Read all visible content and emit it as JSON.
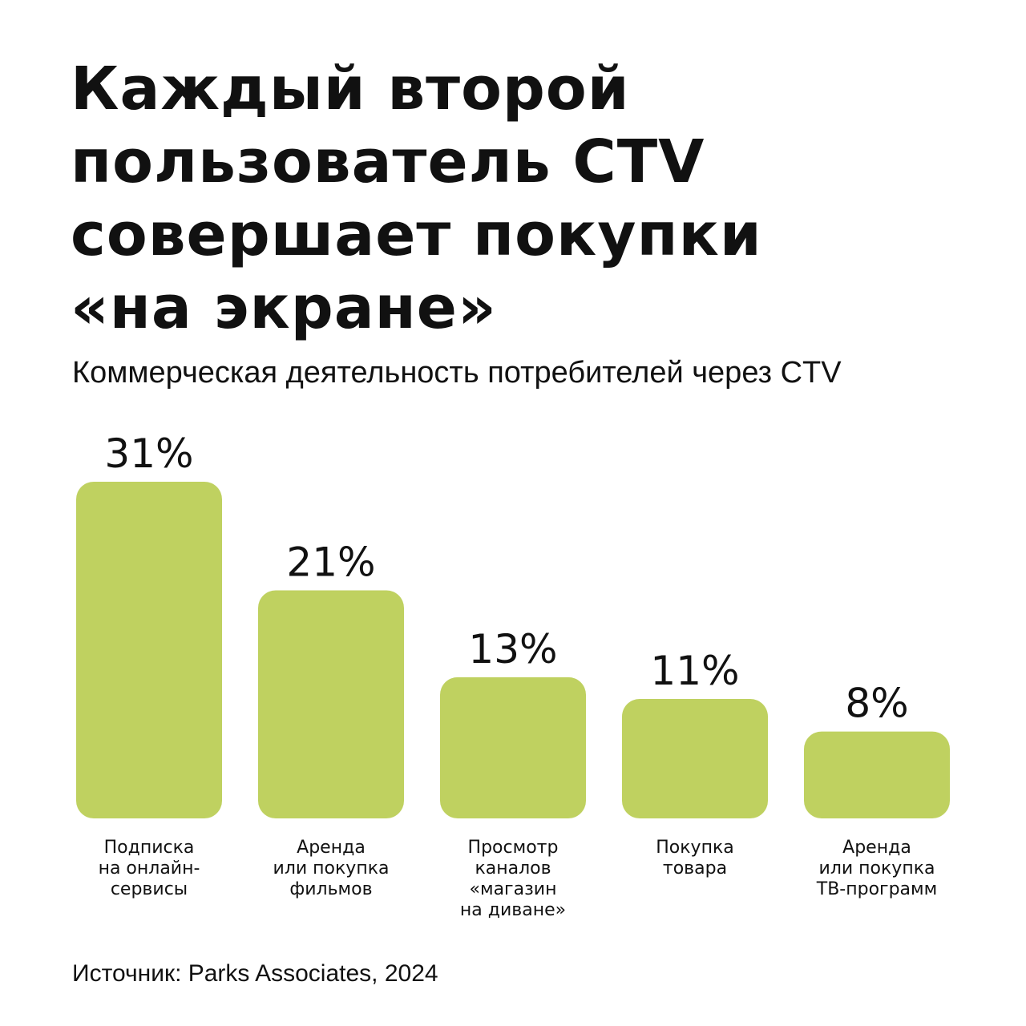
{
  "header": {
    "title_lines": [
      "Каждый второй",
      "пользователь CTV",
      "совершает покупки",
      "«на экране»"
    ],
    "subtitle": "Коммерческая деятельность потребителей через CTV"
  },
  "chart_data": {
    "type": "bar",
    "title": "Каждый второй пользователь CTV совершает покупки «на экране»",
    "subtitle": "Коммерческая деятельность потребителей через CTV",
    "categories": [
      "Подписка на онлайн-сервисы",
      "Аренда или покупка фильмов",
      "Просмотр каналов «магазин на диване»",
      "Покупка товара",
      "Аренда или покупка ТВ-программ"
    ],
    "category_label_lines": [
      [
        "Подписка",
        "на онлайн-",
        "сервисы"
      ],
      [
        "Аренда",
        "или покупка",
        "фильмов"
      ],
      [
        "Просмотр",
        "каналов",
        "«магазин",
        "на диване»"
      ],
      [
        "Покупка",
        "товара"
      ],
      [
        "Аренда",
        "или покупка",
        "ТВ-программ"
      ]
    ],
    "values": [
      31,
      21,
      13,
      11,
      8
    ],
    "data_labels": [
      "31%",
      "21%",
      "13%",
      "11%",
      "8%"
    ],
    "unit": "%",
    "xlabel": "",
    "ylabel": "",
    "grid": false,
    "legend": "none",
    "bar_color": "#BFD160"
  },
  "footer": {
    "source": "Источник: Parks Associates, 2024"
  }
}
